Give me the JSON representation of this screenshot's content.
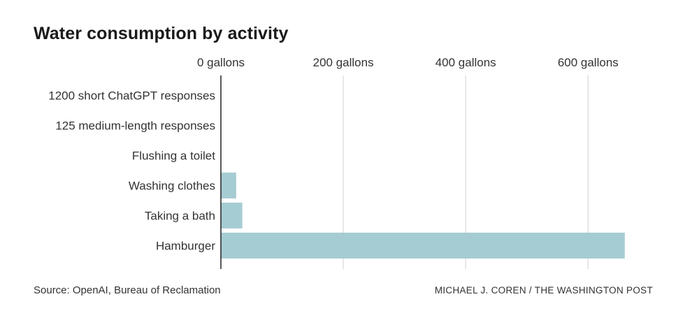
{
  "title": "Water consumption by activity",
  "source": "Source: OpenAI, Bureau of Reclamation",
  "credit": "MICHAEL J. COREN / THE WASHINGTON POST",
  "colors": {
    "bar": "#a6ccd3",
    "grid": "#d9d9d9",
    "axis": "#222222"
  },
  "chart_data": {
    "type": "bar",
    "orientation": "horizontal",
    "categories": [
      "1200 short ChatGPT responses",
      "125 medium-length responses",
      "Flushing a toilet",
      "Washing clothes",
      "Taking a bath",
      "Hamburger"
    ],
    "values": [
      0.2,
      0.2,
      0.2,
      25,
      35,
      660
    ],
    "xticks": [
      0,
      200,
      400,
      600
    ],
    "xtick_labels": [
      "0 gallons",
      "200 gallons",
      "400 gallons",
      "600 gallons"
    ],
    "xlim": [
      0,
      660
    ],
    "grid": true,
    "tick_position": "top"
  }
}
